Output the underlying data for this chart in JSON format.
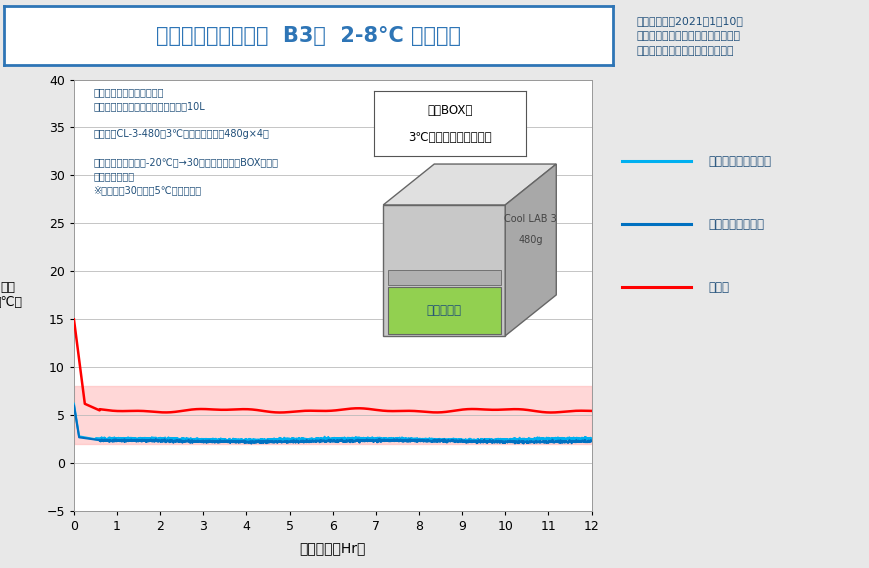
{
  "title": "定温輸送容器セット  B3案  2-8°C 温度試験",
  "xlabel": "経過時間（Hr）",
  "ylabel": "温度\n（℃）",
  "xlim": [
    0,
    12
  ],
  "ylim": [
    -5,
    40
  ],
  "yticks": [
    -5,
    0,
    5,
    10,
    15,
    20,
    25,
    30,
    35,
    40
  ],
  "xticks": [
    0,
    1,
    2,
    3,
    4,
    5,
    6,
    7,
    8,
    9,
    10,
    11,
    12
  ],
  "info_line1": "試験実施日：2021年1月10日",
  "info_line2": "試験実施場所　：　搐スギヤマゲン",
  "info_line3": "試験実施者　：　搐スギヤマゲン",
  "cond_line1": "＜温度計測試験実施条件＞",
  "cond_line2": "使用ボックス　：　発泡ボックス、10L",
  "cond_line3": "保冷劑：CL-3-480（3℃融点保冷劑）　480g×4枚",
  "cond_line4": "投入条件：冷凍庫（-20℃）→30分室温放置後、BOX内投入",
  "cond_line5": "アルミ内笱使用",
  "cond_line6": "※内笱開始30分前に5℃冷蔵庫投入",
  "foam_line1": "発泡BOX内",
  "foam_line2": "3℃保冷劑セッティング",
  "cool_lab": "Cool LAB 3",
  "cool_g": "480g",
  "alu_box": "アルミ内笱",
  "legend_labels": [
    "アルミ内笱内中心部",
    "アルミ内笱内スミ",
    "外気温"
  ],
  "line_colors": [
    "#00b0f0",
    "#0070c0",
    "#ff0000"
  ],
  "shade_ymin": 2,
  "shade_ymax": 8,
  "shade_color": "#ffb0b0",
  "bg_color": "#e8e8e8",
  "plot_bg": "#ffffff",
  "title_box_color": "#ffffff",
  "title_border_color": "#2e75b6",
  "info_bg": "#bce8f5",
  "cond_bg": "#bce8f5",
  "text_color": "#1f4e79"
}
